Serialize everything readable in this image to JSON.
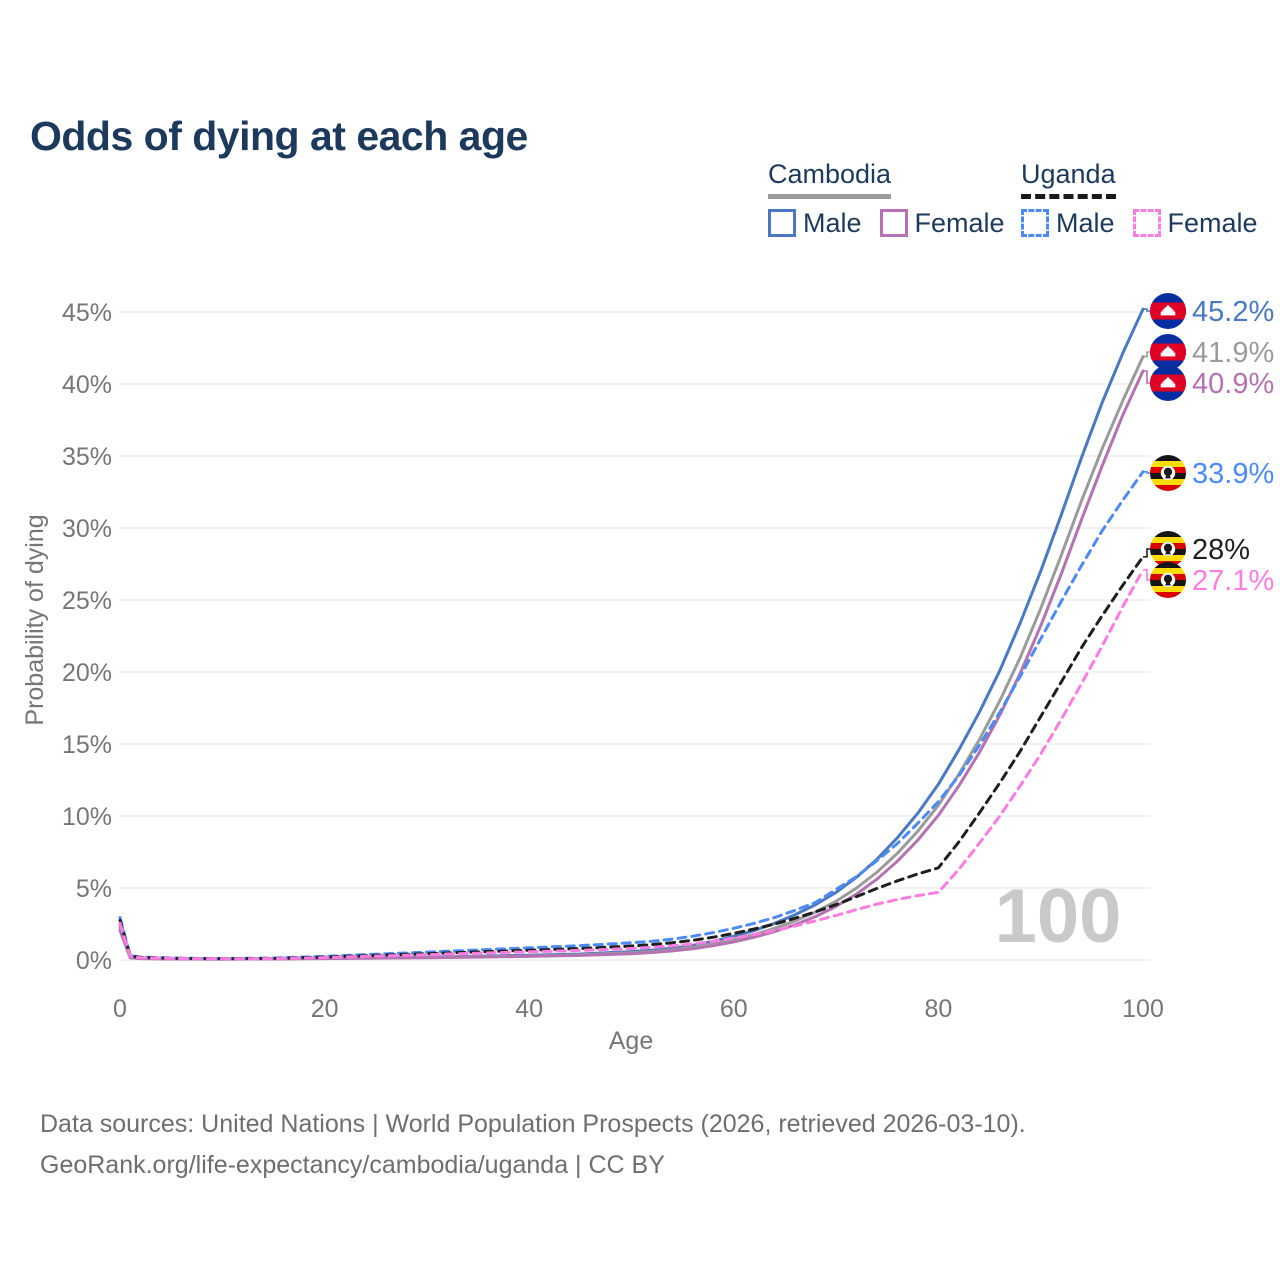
{
  "title": "Odds of dying at each age",
  "legend": {
    "groups": [
      {
        "label": "Cambodia",
        "line_style": "solid",
        "line_color": "#9b9b9b",
        "items": [
          {
            "label": "Male",
            "color": "#4a79c1",
            "dashed": false
          },
          {
            "label": "Female",
            "color": "#b472b2",
            "dashed": false
          }
        ]
      },
      {
        "label": "Uganda",
        "line_style": "dashed",
        "line_color": "#1a1a1a",
        "items": [
          {
            "label": "Male",
            "color": "#4c8bf5",
            "dashed": true
          },
          {
            "label": "Female",
            "color": "#ff7ce0",
            "dashed": true
          }
        ]
      }
    ]
  },
  "footer": {
    "line1": "Data sources: United Nations | World Population Prospects (2026, retrieved 2026-03-10).",
    "line2": "GeoRank.org/life-expectancy/cambodia/uganda | CC BY"
  },
  "chart_data": {
    "type": "line",
    "title": "Odds of dying at each age",
    "xlabel": "Age",
    "ylabel": "Probability of dying",
    "xlim": [
      0,
      100
    ],
    "ylim": [
      0,
      45.5
    ],
    "grid": "horizontal-only",
    "legend_position": "top-right",
    "watermark": "100",
    "xticks": [
      {
        "v": 0,
        "label": "0"
      },
      {
        "v": 20,
        "label": "20"
      },
      {
        "v": 40,
        "label": "40"
      },
      {
        "v": 60,
        "label": "60"
      },
      {
        "v": 80,
        "label": "80"
      },
      {
        "v": 100,
        "label": "100"
      }
    ],
    "yticks": [
      {
        "v": 0,
        "label": "0%"
      },
      {
        "v": 5,
        "label": "5%"
      },
      {
        "v": 10,
        "label": "10%"
      },
      {
        "v": 15,
        "label": "15%"
      },
      {
        "v": 20,
        "label": "20%"
      },
      {
        "v": 25,
        "label": "25%"
      },
      {
        "v": 30,
        "label": "30%"
      },
      {
        "v": 35,
        "label": "35%"
      },
      {
        "v": 40,
        "label": "40%"
      },
      {
        "v": 45,
        "label": "45%"
      }
    ],
    "x": [
      0,
      1,
      2,
      5,
      10,
      15,
      20,
      25,
      30,
      35,
      40,
      45,
      50,
      52,
      54,
      56,
      58,
      60,
      62,
      64,
      66,
      68,
      70,
      72,
      74,
      76,
      78,
      80,
      82,
      84,
      86,
      88,
      90,
      92,
      94,
      96,
      98,
      100
    ],
    "series": [
      {
        "id": "cambodia-male",
        "name": "Cambodia Male",
        "country": "Cambodia",
        "sex": "Male",
        "color": "#4a79c1",
        "dash": "solid",
        "flag_icon": "cambodia-flag-icon",
        "end_label": "45.2%",
        "end_value": 45.2,
        "values": [
          2.45,
          0.18,
          0.12,
          0.08,
          0.07,
          0.09,
          0.14,
          0.18,
          0.21,
          0.26,
          0.33,
          0.42,
          0.58,
          0.68,
          0.82,
          1.02,
          1.3,
          1.65,
          2.05,
          2.55,
          3.15,
          3.85,
          4.7,
          5.75,
          7.0,
          8.5,
          10.2,
          12.2,
          14.6,
          17.2,
          20.1,
          23.4,
          27.0,
          30.9,
          34.9,
          38.7,
          42.1,
          45.2
        ]
      },
      {
        "id": "cambodia-both",
        "name": "Cambodia Both sexes",
        "country": "Cambodia",
        "sex": "Both",
        "color": "#9b9b9b",
        "dash": "solid",
        "flag_icon": "cambodia-flag-icon",
        "end_label": "41.9%",
        "end_value": 41.9,
        "values": [
          2.25,
          0.16,
          0.11,
          0.075,
          0.065,
          0.08,
          0.12,
          0.155,
          0.18,
          0.22,
          0.28,
          0.36,
          0.5,
          0.59,
          0.71,
          0.88,
          1.12,
          1.42,
          1.77,
          2.2,
          2.72,
          3.33,
          4.08,
          5.0,
          6.1,
          7.42,
          8.95,
          10.75,
          12.9,
          15.3,
          18.0,
          21.0,
          24.4,
          28.1,
          31.9,
          35.5,
          38.8,
          41.9
        ]
      },
      {
        "id": "cambodia-female",
        "name": "Cambodia Female",
        "country": "Cambodia",
        "sex": "Female",
        "color": "#b472b2",
        "dash": "solid",
        "flag_icon": "cambodia-flag-icon",
        "end_label": "40.9%",
        "end_value": 40.9,
        "values": [
          2.05,
          0.15,
          0.1,
          0.07,
          0.06,
          0.07,
          0.1,
          0.13,
          0.16,
          0.2,
          0.25,
          0.32,
          0.44,
          0.52,
          0.63,
          0.78,
          0.99,
          1.26,
          1.58,
          1.97,
          2.45,
          3.02,
          3.72,
          4.58,
          5.62,
          6.87,
          8.33,
          10.05,
          12.1,
          14.4,
          17.0,
          19.9,
          23.2,
          26.8,
          30.6,
          34.3,
          37.8,
          40.9
        ]
      },
      {
        "id": "uganda-male",
        "name": "Uganda Male",
        "country": "Uganda",
        "sex": "Male",
        "color": "#4c8bf5",
        "dash": "dashed",
        "flag_icon": "uganda-flag-icon",
        "end_label": "33.9%",
        "end_value": 33.9,
        "values": [
          2.95,
          0.3,
          0.2,
          0.13,
          0.1,
          0.13,
          0.25,
          0.4,
          0.55,
          0.7,
          0.85,
          1.0,
          1.2,
          1.3,
          1.45,
          1.65,
          1.9,
          2.2,
          2.55,
          2.95,
          3.45,
          4.0,
          4.9,
          5.8,
          6.9,
          8.1,
          9.5,
          11.0,
          12.8,
          14.9,
          17.2,
          19.7,
          22.3,
          24.9,
          27.4,
          29.8,
          31.9,
          33.9
        ]
      },
      {
        "id": "uganda-both",
        "name": "Uganda Both sexes",
        "country": "Uganda",
        "sex": "Both",
        "color": "#1f1f1f",
        "dash": "dashed",
        "flag_icon": "uganda-flag-icon",
        "end_label": "28%",
        "end_value": 28,
        "values": [
          2.75,
          0.27,
          0.18,
          0.12,
          0.09,
          0.11,
          0.2,
          0.32,
          0.44,
          0.56,
          0.68,
          0.8,
          0.97,
          1.07,
          1.2,
          1.37,
          1.58,
          1.85,
          2.15,
          2.5,
          2.9,
          3.35,
          3.85,
          4.4,
          4.97,
          5.5,
          5.98,
          6.4,
          8.2,
          10.2,
          12.3,
          14.5,
          16.9,
          19.3,
          21.7,
          23.9,
          26.0,
          28.0
        ]
      },
      {
        "id": "uganda-female",
        "name": "Uganda Female",
        "country": "Uganda",
        "sex": "Female",
        "color": "#ff7ce0",
        "dash": "dashed",
        "flag_icon": "uganda-flag-icon",
        "end_label": "27.1%",
        "end_value": 27.1,
        "values": [
          2.55,
          0.24,
          0.16,
          0.11,
          0.08,
          0.1,
          0.17,
          0.27,
          0.37,
          0.47,
          0.57,
          0.67,
          0.8,
          0.88,
          0.98,
          1.12,
          1.3,
          1.52,
          1.77,
          2.05,
          2.37,
          2.72,
          3.1,
          3.5,
          3.88,
          4.2,
          4.47,
          4.7,
          6.3,
          8.1,
          10.0,
          12.1,
          14.3,
          16.7,
          19.2,
          21.8,
          24.5,
          27.1
        ]
      }
    ]
  }
}
